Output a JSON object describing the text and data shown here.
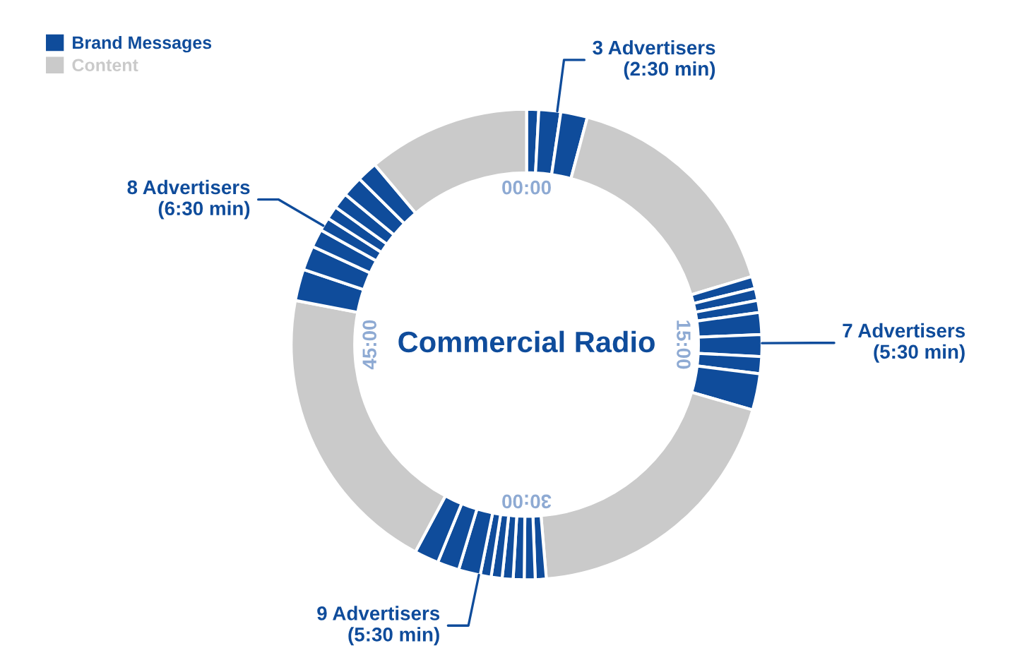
{
  "chart_data": {
    "type": "donut",
    "title": "Commercial Radio",
    "categories": [
      "Brand Messages",
      null,
      null,
      "Content",
      null,
      null,
      null,
      null,
      null,
      null,
      null,
      null,
      null,
      null,
      null,
      null,
      null,
      null,
      null,
      null,
      null,
      null,
      null,
      null,
      null,
      null,
      null,
      null,
      null,
      null,
      null
    ],
    "values": [
      0.83,
      1.5,
      1.83,
      16.17,
      0.83,
      0.83,
      0.83,
      1.5,
      1.5,
      1.17,
      2.5,
      19.17,
      0.75,
      0.75,
      0.75,
      0.75,
      0.75,
      0.75,
      1.5,
      1.5,
      1.67,
      20.17,
      2.17,
      1.67,
      1.25,
      0.92,
      0.92,
      1.08,
      1.42,
      1.42,
      11.15
    ],
    "colors": [
      "#0f4c9b",
      "#0f4c9b",
      "#0f4c9b",
      "#cacaca",
      "#0f4c9b",
      "#0f4c9b",
      "#0f4c9b",
      "#0f4c9b",
      "#0f4c9b",
      "#0f4c9b",
      "#0f4c9b",
      "#cacaca",
      "#0f4c9b",
      "#0f4c9b",
      "#0f4c9b",
      "#0f4c9b",
      "#0f4c9b",
      "#0f4c9b",
      "#0f4c9b",
      "#0f4c9b",
      "#0f4c9b",
      "#cacaca",
      "#0f4c9b",
      "#0f4c9b",
      "#0f4c9b",
      "#0f4c9b",
      "#0f4c9b",
      "#0f4c9b",
      "#0f4c9b",
      "#0f4c9b",
      "#cacaca"
    ],
    "annotations": [
      "3 Advertisers\n(2:30 min)",
      "7 Advertisers\n(5:30 min)",
      "9 Advertisers\n(5:30 min)",
      "8 Advertisers\n(6:30 min)",
      "00:00",
      "15:00",
      "30:00",
      "45:00"
    ],
    "legend": "top left"
  }
}
